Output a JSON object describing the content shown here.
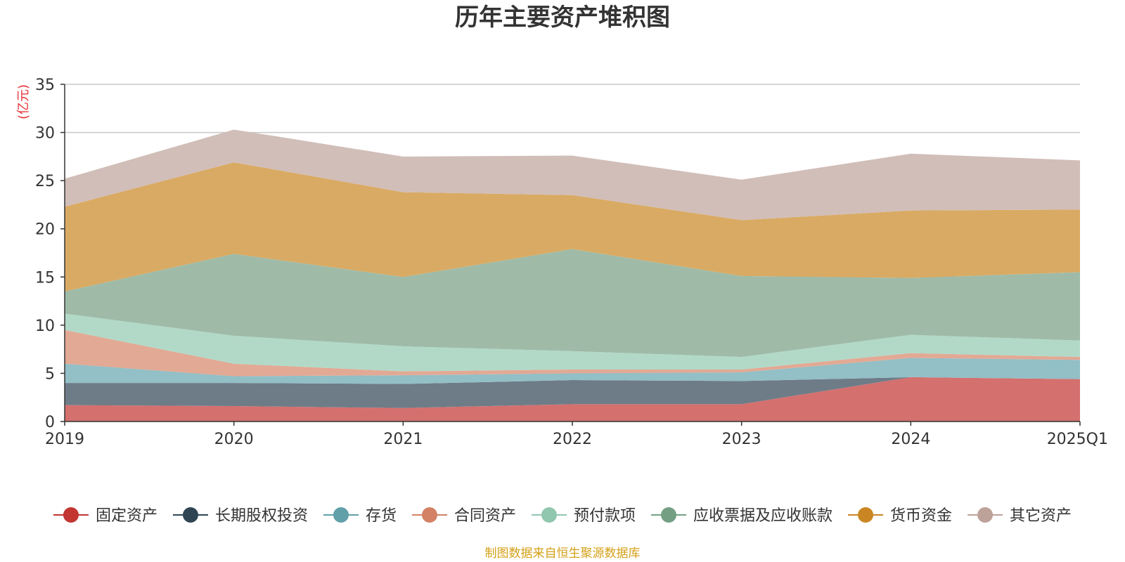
{
  "chart_data": {
    "type": "area",
    "stacked": true,
    "title": "历年主要资产堆积图",
    "unit_label": "(亿元)",
    "source_note": "制图数据来自恒生聚源数据库",
    "categories": [
      "2019",
      "2020",
      "2021",
      "2022",
      "2023",
      "2024",
      "2025Q1"
    ],
    "ylim": [
      0,
      35
    ],
    "yticks": [
      0,
      5,
      10,
      15,
      20,
      25,
      30,
      35
    ],
    "grid": true,
    "legend_position": "bottom",
    "series": [
      {
        "name": "固定资产",
        "color": "#c23531",
        "fill": "#d4706e",
        "values": [
          1.7,
          1.6,
          1.4,
          1.8,
          1.8,
          4.6,
          4.4
        ]
      },
      {
        "name": "长期股权投资",
        "color": "#2f4554",
        "fill": "#6e7c88",
        "values": [
          2.3,
          2.4,
          2.5,
          2.5,
          2.4,
          0.0,
          0.0
        ]
      },
      {
        "name": "存货",
        "color": "#61a0a8",
        "fill": "#93bfc6",
        "values": [
          2.0,
          0.7,
          0.9,
          0.7,
          0.9,
          2.0,
          2.0
        ]
      },
      {
        "name": "合同资产",
        "color": "#d48265",
        "fill": "#e2a994",
        "values": [
          3.5,
          1.3,
          0.4,
          0.4,
          0.3,
          0.5,
          0.3
        ]
      },
      {
        "name": "预付款项",
        "color": "#91c7ae",
        "fill": "#b2d9c7",
        "values": [
          1.7,
          2.9,
          2.6,
          1.9,
          1.3,
          1.9,
          1.7
        ]
      },
      {
        "name": "应收票据及应收账款",
        "color": "#749f83",
        "fill": "#9fbba8",
        "values": [
          2.3,
          8.5,
          7.2,
          10.6,
          8.4,
          5.9,
          7.1
        ]
      },
      {
        "name": "货币资金",
        "color": "#ca8622",
        "fill": "#d9aa63",
        "values": [
          8.8,
          9.5,
          8.8,
          5.6,
          5.8,
          7.0,
          6.5
        ]
      },
      {
        "name": "其它资产",
        "color": "#bda29a",
        "fill": "#d1beb8",
        "values": [
          2.9,
          3.4,
          3.7,
          4.1,
          4.2,
          5.9,
          5.1
        ]
      }
    ]
  }
}
